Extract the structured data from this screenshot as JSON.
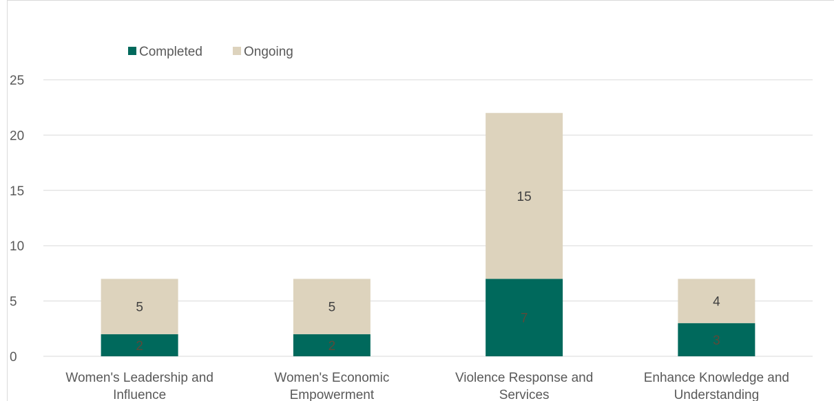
{
  "chart_data": {
    "type": "bar",
    "stacked": true,
    "categories": [
      [
        "Women's Leadership and",
        "Influence"
      ],
      [
        "Women's Economic",
        "Empowerment"
      ],
      [
        "Violence Response and",
        "Services"
      ],
      [
        "Enhance Knowledge and",
        "Understanding"
      ]
    ],
    "series": [
      {
        "name": "Completed",
        "values": [
          2,
          2,
          7,
          3
        ],
        "color": "#00695C",
        "label_color": "#5a4a3a"
      },
      {
        "name": "Ongoing",
        "values": [
          5,
          5,
          15,
          4
        ],
        "color": "#DDD3BD",
        "label_color": "#404040"
      }
    ],
    "ylim": [
      0,
      25
    ],
    "yticks": [
      0,
      5,
      10,
      15,
      20,
      25
    ],
    "grid": true,
    "legend": "top-left",
    "title": "",
    "xlabel": "",
    "ylabel": ""
  }
}
